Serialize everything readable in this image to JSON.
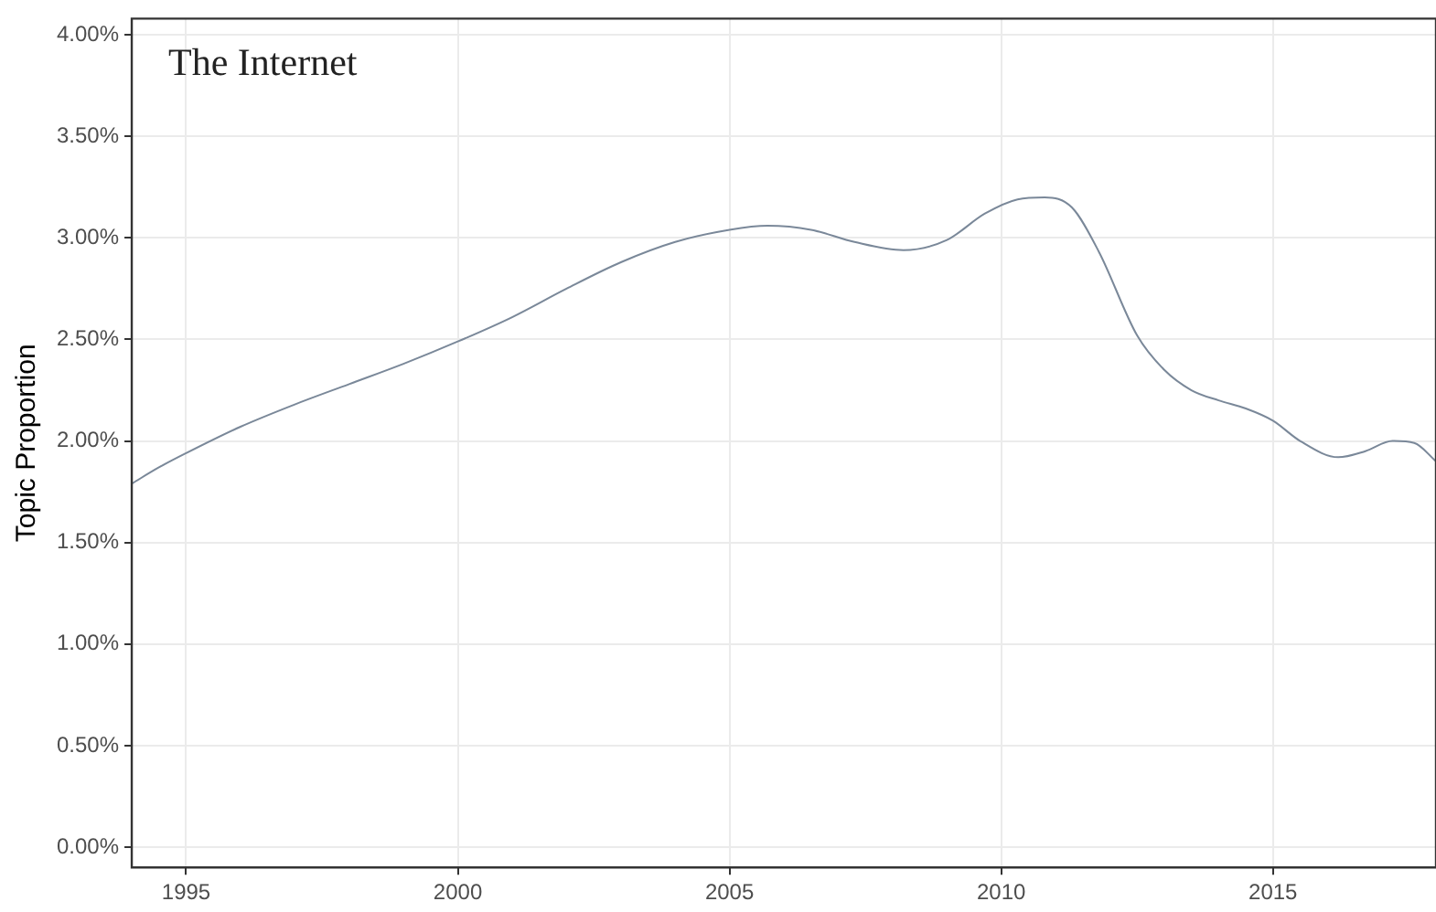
{
  "chart_data": {
    "type": "line",
    "title": "The Internet",
    "ylabel": "Topic Proportion",
    "x": [
      1994,
      1994.5,
      1995,
      1996,
      1997,
      1998,
      1999,
      2000,
      2001,
      2002,
      2003,
      2004,
      2005,
      2005.7,
      2006.5,
      2007.3,
      2008.2,
      2009,
      2009.7,
      2010.3,
      2010.8,
      2011.3,
      2011.8,
      2012.5,
      2013,
      2013.5,
      2014,
      2014.5,
      2015,
      2015.5,
      2016.2,
      2016.7,
      2017.2,
      2017.6,
      2018
    ],
    "series": [
      {
        "color": "#7a8899",
        "values": [
          1.79,
          1.87,
          1.94,
          2.07,
          2.18,
          2.28,
          2.38,
          2.49,
          2.61,
          2.75,
          2.88,
          2.98,
          3.04,
          3.06,
          3.04,
          2.98,
          2.94,
          2.99,
          3.12,
          3.19,
          3.2,
          3.15,
          2.93,
          2.52,
          2.35,
          2.25,
          2.2,
          2.16,
          2.1,
          2.0,
          1.92,
          1.95,
          2.0,
          1.99,
          1.9
        ]
      }
    ],
    "xlim": [
      1994,
      2018
    ],
    "ylim": [
      -0.1,
      4.08
    ],
    "xticks": [
      1995,
      2000,
      2005,
      2010,
      2015
    ],
    "yticks": [
      {
        "value": 0,
        "label": "0.00%"
      },
      {
        "value": 0.5,
        "label": "0.50%"
      },
      {
        "value": 1,
        "label": "1.00%"
      },
      {
        "value": 1.5,
        "label": "1.50%"
      },
      {
        "value": 2,
        "label": "2.00%"
      },
      {
        "value": 2.5,
        "label": "2.50%"
      },
      {
        "value": 3,
        "label": "3.00%"
      },
      {
        "value": 3.5,
        "label": "3.50%"
      },
      {
        "value": 4,
        "label": "4.00%"
      }
    ],
    "grid": true,
    "legend": false,
    "marker": "none",
    "line_style": "solid"
  }
}
